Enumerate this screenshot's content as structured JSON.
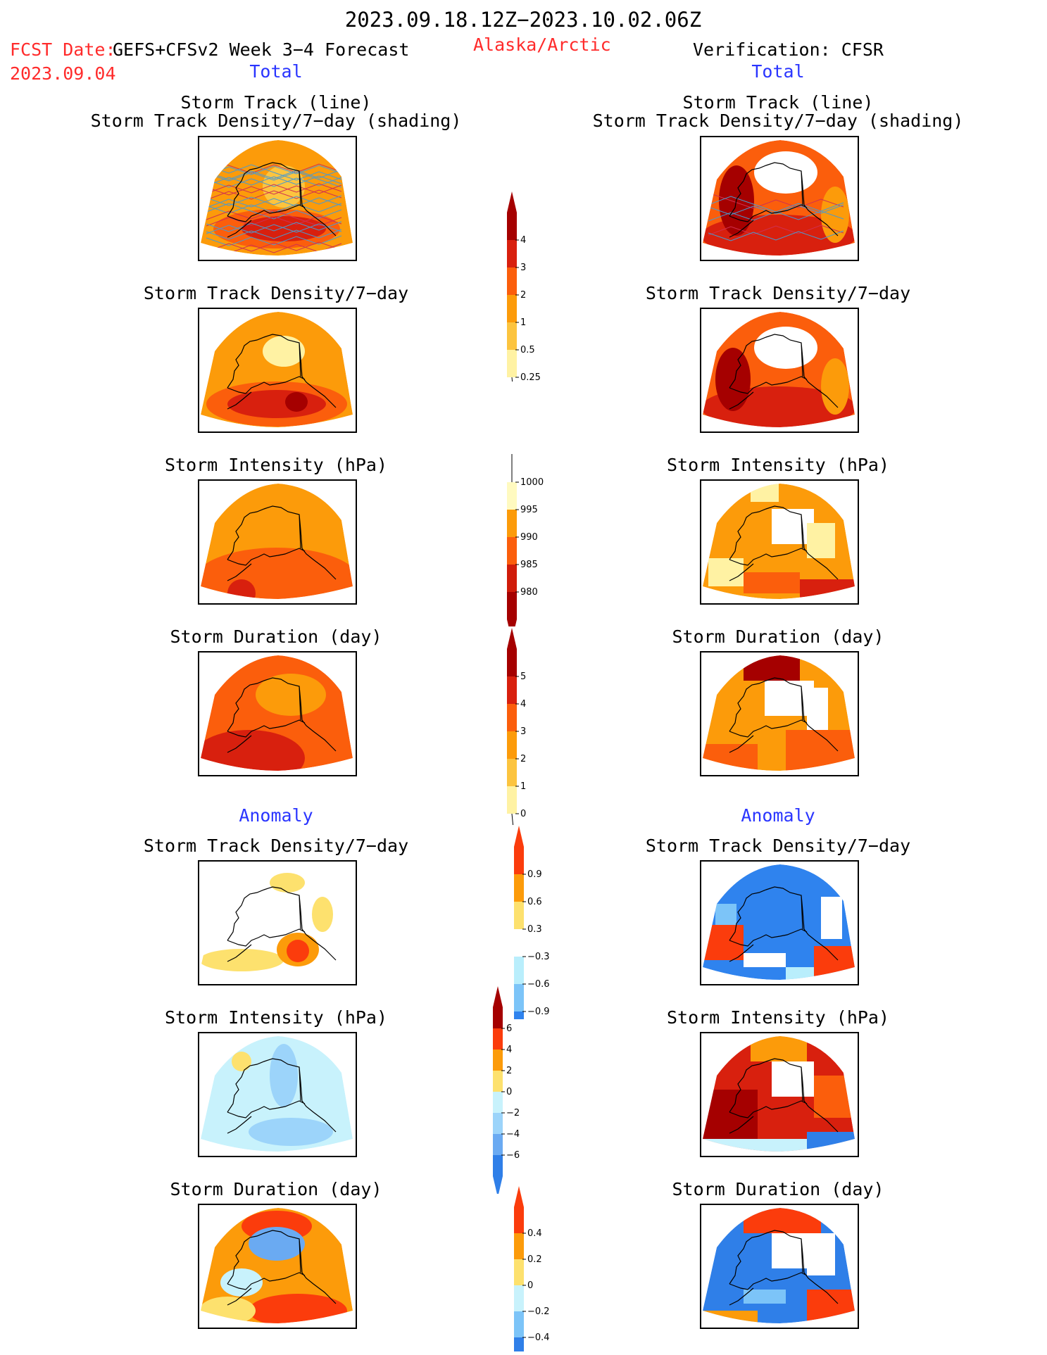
{
  "header": {
    "period": "2023.09.18.12Z−2023.10.02.06Z",
    "fcst_date_label": "FCST Date:",
    "fcst_source": "GEFS+CFSv2 Week 3−4 Forecast",
    "fcst_date": "2023.09.04",
    "region": "Alaska/Arctic",
    "verification": "Verification: CFSR"
  },
  "sections": {
    "total_left": "Total",
    "total_right": "Total",
    "anomaly_left": "Anomaly",
    "anomaly_right": "Anomaly"
  },
  "panels": {
    "track": {
      "title1": "Storm Track (line)",
      "title2": "Storm Track Density/7−day (shading)"
    },
    "density": {
      "title": "Storm Track Density/7−day"
    },
    "intensity": {
      "title": "Storm Intensity (hPa)"
    },
    "duration": {
      "title": "Storm Duration (day)"
    }
  },
  "colorbars": {
    "density": {
      "labels": [
        "4",
        "3",
        "2",
        "1",
        "0.5",
        "0.25"
      ],
      "colors": [
        "#a50000",
        "#d8200e",
        "#fb5e0c",
        "#fc9b0a",
        "#fcc43f",
        "#fff2a3"
      ]
    },
    "intensity": {
      "labels": [
        "1000",
        "995",
        "990",
        "985",
        "980"
      ],
      "colors": [
        "#fffac0",
        "#fc9b0a",
        "#fb5e0c",
        "#d01c0a",
        "#a50000"
      ]
    },
    "duration": {
      "labels": [
        "5",
        "4",
        "3",
        "2",
        "1",
        "0"
      ],
      "colors": [
        "#a50000",
        "#d8200e",
        "#fb5e0c",
        "#fc9b0a",
        "#fcc43f",
        "#fff2a3"
      ]
    },
    "anom_density": {
      "labels": [
        "0.9",
        "0.6",
        "0.3",
        "−0.3",
        "−0.6",
        "−0.9"
      ],
      "colors": [
        "#fb3c0c",
        "#fc9b0a",
        "#fde16e",
        "#ffffff",
        "#b9eefc",
        "#7cc4f8",
        "#2f83ee"
      ]
    },
    "anom_intensity": {
      "labels": [
        "6",
        "4",
        "2",
        "0",
        "−2",
        "−4",
        "−6"
      ],
      "colors": [
        "#a50000",
        "#fb3c0c",
        "#fc9b0a",
        "#fde16e",
        "#c8f2fc",
        "#9cd4fa",
        "#6aaaf2",
        "#2f7fe8"
      ]
    },
    "anom_duration": {
      "labels": [
        "0.4",
        "0.2",
        "0",
        "−0.2",
        "−0.4"
      ],
      "colors": [
        "#fb3c0c",
        "#fc9b0a",
        "#fde16e",
        "#c8f2fc",
        "#7cc4f8",
        "#2f7fe8"
      ]
    }
  }
}
